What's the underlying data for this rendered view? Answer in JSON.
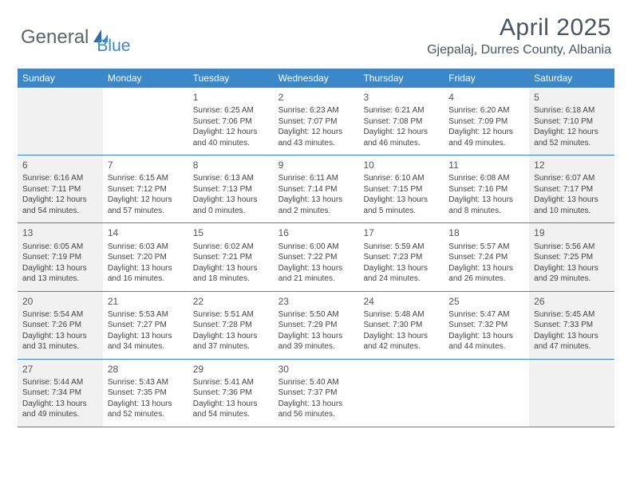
{
  "logo": {
    "general": "General",
    "blue": "Blue"
  },
  "title": "April 2025",
  "location": "Gjepalaj, Durres County, Albania",
  "colors": {
    "header_blue": "#3b88c9",
    "text_gray": "#4a5560",
    "shade": "#f1f1f1",
    "white": "#ffffff"
  },
  "day_names": [
    "Sunday",
    "Monday",
    "Tuesday",
    "Wednesday",
    "Thursday",
    "Friday",
    "Saturday"
  ],
  "weeks": [
    [
      {
        "day": "",
        "sunrise": "",
        "sunset": "",
        "daylight": ""
      },
      {
        "day": "",
        "sunrise": "",
        "sunset": "",
        "daylight": ""
      },
      {
        "day": "1",
        "sunrise": "Sunrise: 6:25 AM",
        "sunset": "Sunset: 7:06 PM",
        "daylight": "Daylight: 12 hours and 40 minutes."
      },
      {
        "day": "2",
        "sunrise": "Sunrise: 6:23 AM",
        "sunset": "Sunset: 7:07 PM",
        "daylight": "Daylight: 12 hours and 43 minutes."
      },
      {
        "day": "3",
        "sunrise": "Sunrise: 6:21 AM",
        "sunset": "Sunset: 7:08 PM",
        "daylight": "Daylight: 12 hours and 46 minutes."
      },
      {
        "day": "4",
        "sunrise": "Sunrise: 6:20 AM",
        "sunset": "Sunset: 7:09 PM",
        "daylight": "Daylight: 12 hours and 49 minutes."
      },
      {
        "day": "5",
        "sunrise": "Sunrise: 6:18 AM",
        "sunset": "Sunset: 7:10 PM",
        "daylight": "Daylight: 12 hours and 52 minutes."
      }
    ],
    [
      {
        "day": "6",
        "sunrise": "Sunrise: 6:16 AM",
        "sunset": "Sunset: 7:11 PM",
        "daylight": "Daylight: 12 hours and 54 minutes."
      },
      {
        "day": "7",
        "sunrise": "Sunrise: 6:15 AM",
        "sunset": "Sunset: 7:12 PM",
        "daylight": "Daylight: 12 hours and 57 minutes."
      },
      {
        "day": "8",
        "sunrise": "Sunrise: 6:13 AM",
        "sunset": "Sunset: 7:13 PM",
        "daylight": "Daylight: 13 hours and 0 minutes."
      },
      {
        "day": "9",
        "sunrise": "Sunrise: 6:11 AM",
        "sunset": "Sunset: 7:14 PM",
        "daylight": "Daylight: 13 hours and 2 minutes."
      },
      {
        "day": "10",
        "sunrise": "Sunrise: 6:10 AM",
        "sunset": "Sunset: 7:15 PM",
        "daylight": "Daylight: 13 hours and 5 minutes."
      },
      {
        "day": "11",
        "sunrise": "Sunrise: 6:08 AM",
        "sunset": "Sunset: 7:16 PM",
        "daylight": "Daylight: 13 hours and 8 minutes."
      },
      {
        "day": "12",
        "sunrise": "Sunrise: 6:07 AM",
        "sunset": "Sunset: 7:17 PM",
        "daylight": "Daylight: 13 hours and 10 minutes."
      }
    ],
    [
      {
        "day": "13",
        "sunrise": "Sunrise: 6:05 AM",
        "sunset": "Sunset: 7:19 PM",
        "daylight": "Daylight: 13 hours and 13 minutes."
      },
      {
        "day": "14",
        "sunrise": "Sunrise: 6:03 AM",
        "sunset": "Sunset: 7:20 PM",
        "daylight": "Daylight: 13 hours and 16 minutes."
      },
      {
        "day": "15",
        "sunrise": "Sunrise: 6:02 AM",
        "sunset": "Sunset: 7:21 PM",
        "daylight": "Daylight: 13 hours and 18 minutes."
      },
      {
        "day": "16",
        "sunrise": "Sunrise: 6:00 AM",
        "sunset": "Sunset: 7:22 PM",
        "daylight": "Daylight: 13 hours and 21 minutes."
      },
      {
        "day": "17",
        "sunrise": "Sunrise: 5:59 AM",
        "sunset": "Sunset: 7:23 PM",
        "daylight": "Daylight: 13 hours and 24 minutes."
      },
      {
        "day": "18",
        "sunrise": "Sunrise: 5:57 AM",
        "sunset": "Sunset: 7:24 PM",
        "daylight": "Daylight: 13 hours and 26 minutes."
      },
      {
        "day": "19",
        "sunrise": "Sunrise: 5:56 AM",
        "sunset": "Sunset: 7:25 PM",
        "daylight": "Daylight: 13 hours and 29 minutes."
      }
    ],
    [
      {
        "day": "20",
        "sunrise": "Sunrise: 5:54 AM",
        "sunset": "Sunset: 7:26 PM",
        "daylight": "Daylight: 13 hours and 31 minutes."
      },
      {
        "day": "21",
        "sunrise": "Sunrise: 5:53 AM",
        "sunset": "Sunset: 7:27 PM",
        "daylight": "Daylight: 13 hours and 34 minutes."
      },
      {
        "day": "22",
        "sunrise": "Sunrise: 5:51 AM",
        "sunset": "Sunset: 7:28 PM",
        "daylight": "Daylight: 13 hours and 37 minutes."
      },
      {
        "day": "23",
        "sunrise": "Sunrise: 5:50 AM",
        "sunset": "Sunset: 7:29 PM",
        "daylight": "Daylight: 13 hours and 39 minutes."
      },
      {
        "day": "24",
        "sunrise": "Sunrise: 5:48 AM",
        "sunset": "Sunset: 7:30 PM",
        "daylight": "Daylight: 13 hours and 42 minutes."
      },
      {
        "day": "25",
        "sunrise": "Sunrise: 5:47 AM",
        "sunset": "Sunset: 7:32 PM",
        "daylight": "Daylight: 13 hours and 44 minutes."
      },
      {
        "day": "26",
        "sunrise": "Sunrise: 5:45 AM",
        "sunset": "Sunset: 7:33 PM",
        "daylight": "Daylight: 13 hours and 47 minutes."
      }
    ],
    [
      {
        "day": "27",
        "sunrise": "Sunrise: 5:44 AM",
        "sunset": "Sunset: 7:34 PM",
        "daylight": "Daylight: 13 hours and 49 minutes."
      },
      {
        "day": "28",
        "sunrise": "Sunrise: 5:43 AM",
        "sunset": "Sunset: 7:35 PM",
        "daylight": "Daylight: 13 hours and 52 minutes."
      },
      {
        "day": "29",
        "sunrise": "Sunrise: 5:41 AM",
        "sunset": "Sunset: 7:36 PM",
        "daylight": "Daylight: 13 hours and 54 minutes."
      },
      {
        "day": "30",
        "sunrise": "Sunrise: 5:40 AM",
        "sunset": "Sunset: 7:37 PM",
        "daylight": "Daylight: 13 hours and 56 minutes."
      },
      {
        "day": "",
        "sunrise": "",
        "sunset": "",
        "daylight": ""
      },
      {
        "day": "",
        "sunrise": "",
        "sunset": "",
        "daylight": ""
      },
      {
        "day": "",
        "sunrise": "",
        "sunset": "",
        "daylight": ""
      }
    ]
  ]
}
